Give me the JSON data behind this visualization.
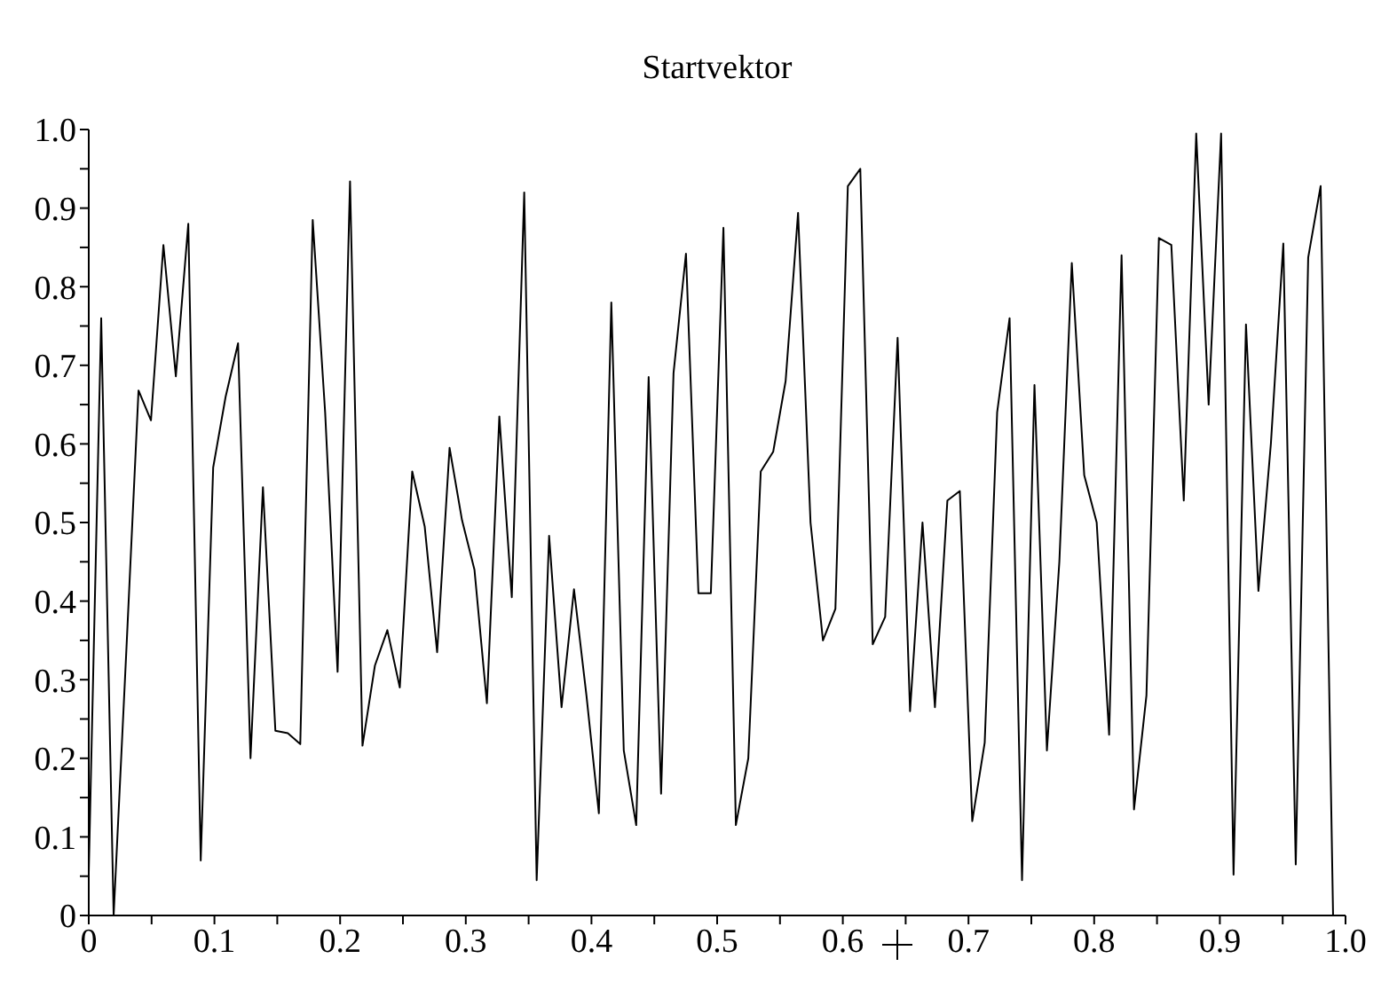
{
  "chart_data": {
    "type": "line",
    "title": "Startvektor",
    "x": [
      0,
      0.0099,
      0.0198,
      0.0297,
      0.0396,
      0.0495,
      0.0594,
      0.0693,
      0.0792,
      0.0891,
      0.099,
      0.1089,
      0.1188,
      0.1287,
      0.1386,
      0.1485,
      0.1584,
      0.1683,
      0.1782,
      0.1881,
      0.198,
      0.2079,
      0.2178,
      0.2277,
      0.2376,
      0.2475,
      0.2574,
      0.2673,
      0.2772,
      0.2871,
      0.297,
      0.3069,
      0.3168,
      0.3267,
      0.3366,
      0.3465,
      0.3564,
      0.3663,
      0.3762,
      0.3861,
      0.396,
      0.4059,
      0.4158,
      0.4257,
      0.4356,
      0.4455,
      0.4554,
      0.4653,
      0.4752,
      0.4851,
      0.495,
      0.505,
      0.5149,
      0.5248,
      0.5347,
      0.5446,
      0.5545,
      0.5644,
      0.5743,
      0.5842,
      0.5941,
      0.604,
      0.6139,
      0.6238,
      0.6337,
      0.6436,
      0.6535,
      0.6634,
      0.6733,
      0.6832,
      0.6931,
      0.703,
      0.7129,
      0.7228,
      0.7327,
      0.7426,
      0.7525,
      0.7624,
      0.7723,
      0.7822,
      0.7921,
      0.802,
      0.8119,
      0.8218,
      0.8317,
      0.8416,
      0.8515,
      0.8614,
      0.8713,
      0.8812,
      0.8911,
      0.901,
      0.9109,
      0.9208,
      0.9307,
      0.9406,
      0.9505,
      0.9604,
      0.9703,
      0.9802,
      0.9901
    ],
    "series": [
      {
        "color": "#000000",
        "values": [
          0.055,
          0.76,
          0.0,
          0.33,
          0.668,
          0.63,
          0.853,
          0.686,
          0.88,
          0.07,
          0.57,
          0.66,
          0.728,
          0.2,
          0.545,
          0.235,
          0.232,
          0.218,
          0.885,
          0.64,
          0.31,
          0.934,
          0.216,
          0.318,
          0.363,
          0.29,
          0.565,
          0.495,
          0.335,
          0.595,
          0.503,
          0.44,
          0.27,
          0.635,
          0.405,
          0.92,
          0.045,
          0.483,
          0.265,
          0.415,
          0.28,
          0.13,
          0.78,
          0.21,
          0.115,
          0.685,
          0.155,
          0.69,
          0.842,
          0.41,
          0.41,
          0.875,
          0.115,
          0.2,
          0.565,
          0.59,
          0.68,
          0.894,
          0.5,
          0.35,
          0.39,
          0.928,
          0.95,
          0.345,
          0.38,
          0.735,
          0.26,
          0.5,
          0.265,
          0.528,
          0.54,
          0.12,
          0.22,
          0.64,
          0.76,
          0.045,
          0.675,
          0.21,
          0.45,
          0.83,
          0.56,
          0.5,
          0.23,
          0.84,
          0.135,
          0.28,
          0.862,
          0.853,
          0.528,
          0.995,
          0.65,
          0.995,
          0.052,
          0.752,
          0.413,
          0.6,
          0.855,
          0.065,
          0.837,
          0.928,
          0.0
        ]
      }
    ],
    "xlim": [
      0,
      1
    ],
    "ylim": [
      0,
      1
    ],
    "xticks": [
      0,
      {
        "value": 0.05,
        "label": null
      },
      0.1,
      {
        "value": 0.15,
        "label": null
      },
      0.2,
      {
        "value": 0.25,
        "label": null
      },
      0.3,
      {
        "value": 0.35,
        "label": null
      },
      0.4,
      {
        "value": 0.45,
        "label": null
      },
      0.5,
      {
        "value": 0.55,
        "label": null
      },
      0.6,
      {
        "value": 0.65,
        "label": null
      },
      0.7,
      {
        "value": 0.75,
        "label": null
      },
      0.8,
      {
        "value": 0.85,
        "label": null
      },
      0.9,
      {
        "value": 0.95,
        "label": null
      },
      {
        "value": 1,
        "label": "1.0"
      }
    ],
    "yticks": [
      0,
      {
        "value": 0.05,
        "label": null
      },
      0.1,
      {
        "value": 0.15,
        "label": null
      },
      0.2,
      {
        "value": 0.25,
        "label": null
      },
      0.3,
      {
        "value": 0.35,
        "label": null
      },
      0.4,
      {
        "value": 0.45,
        "label": null
      },
      0.5,
      {
        "value": 0.55,
        "label": null
      },
      0.6,
      {
        "value": 0.65,
        "label": null
      },
      0.7,
      {
        "value": 0.75,
        "label": null
      },
      0.8,
      {
        "value": 0.85,
        "label": null
      },
      0.9,
      {
        "value": 0.95,
        "label": null
      },
      {
        "value": 1,
        "label": "1.0"
      }
    ],
    "grid": false,
    "legend": false,
    "marker": "none",
    "line_style": "solid"
  }
}
